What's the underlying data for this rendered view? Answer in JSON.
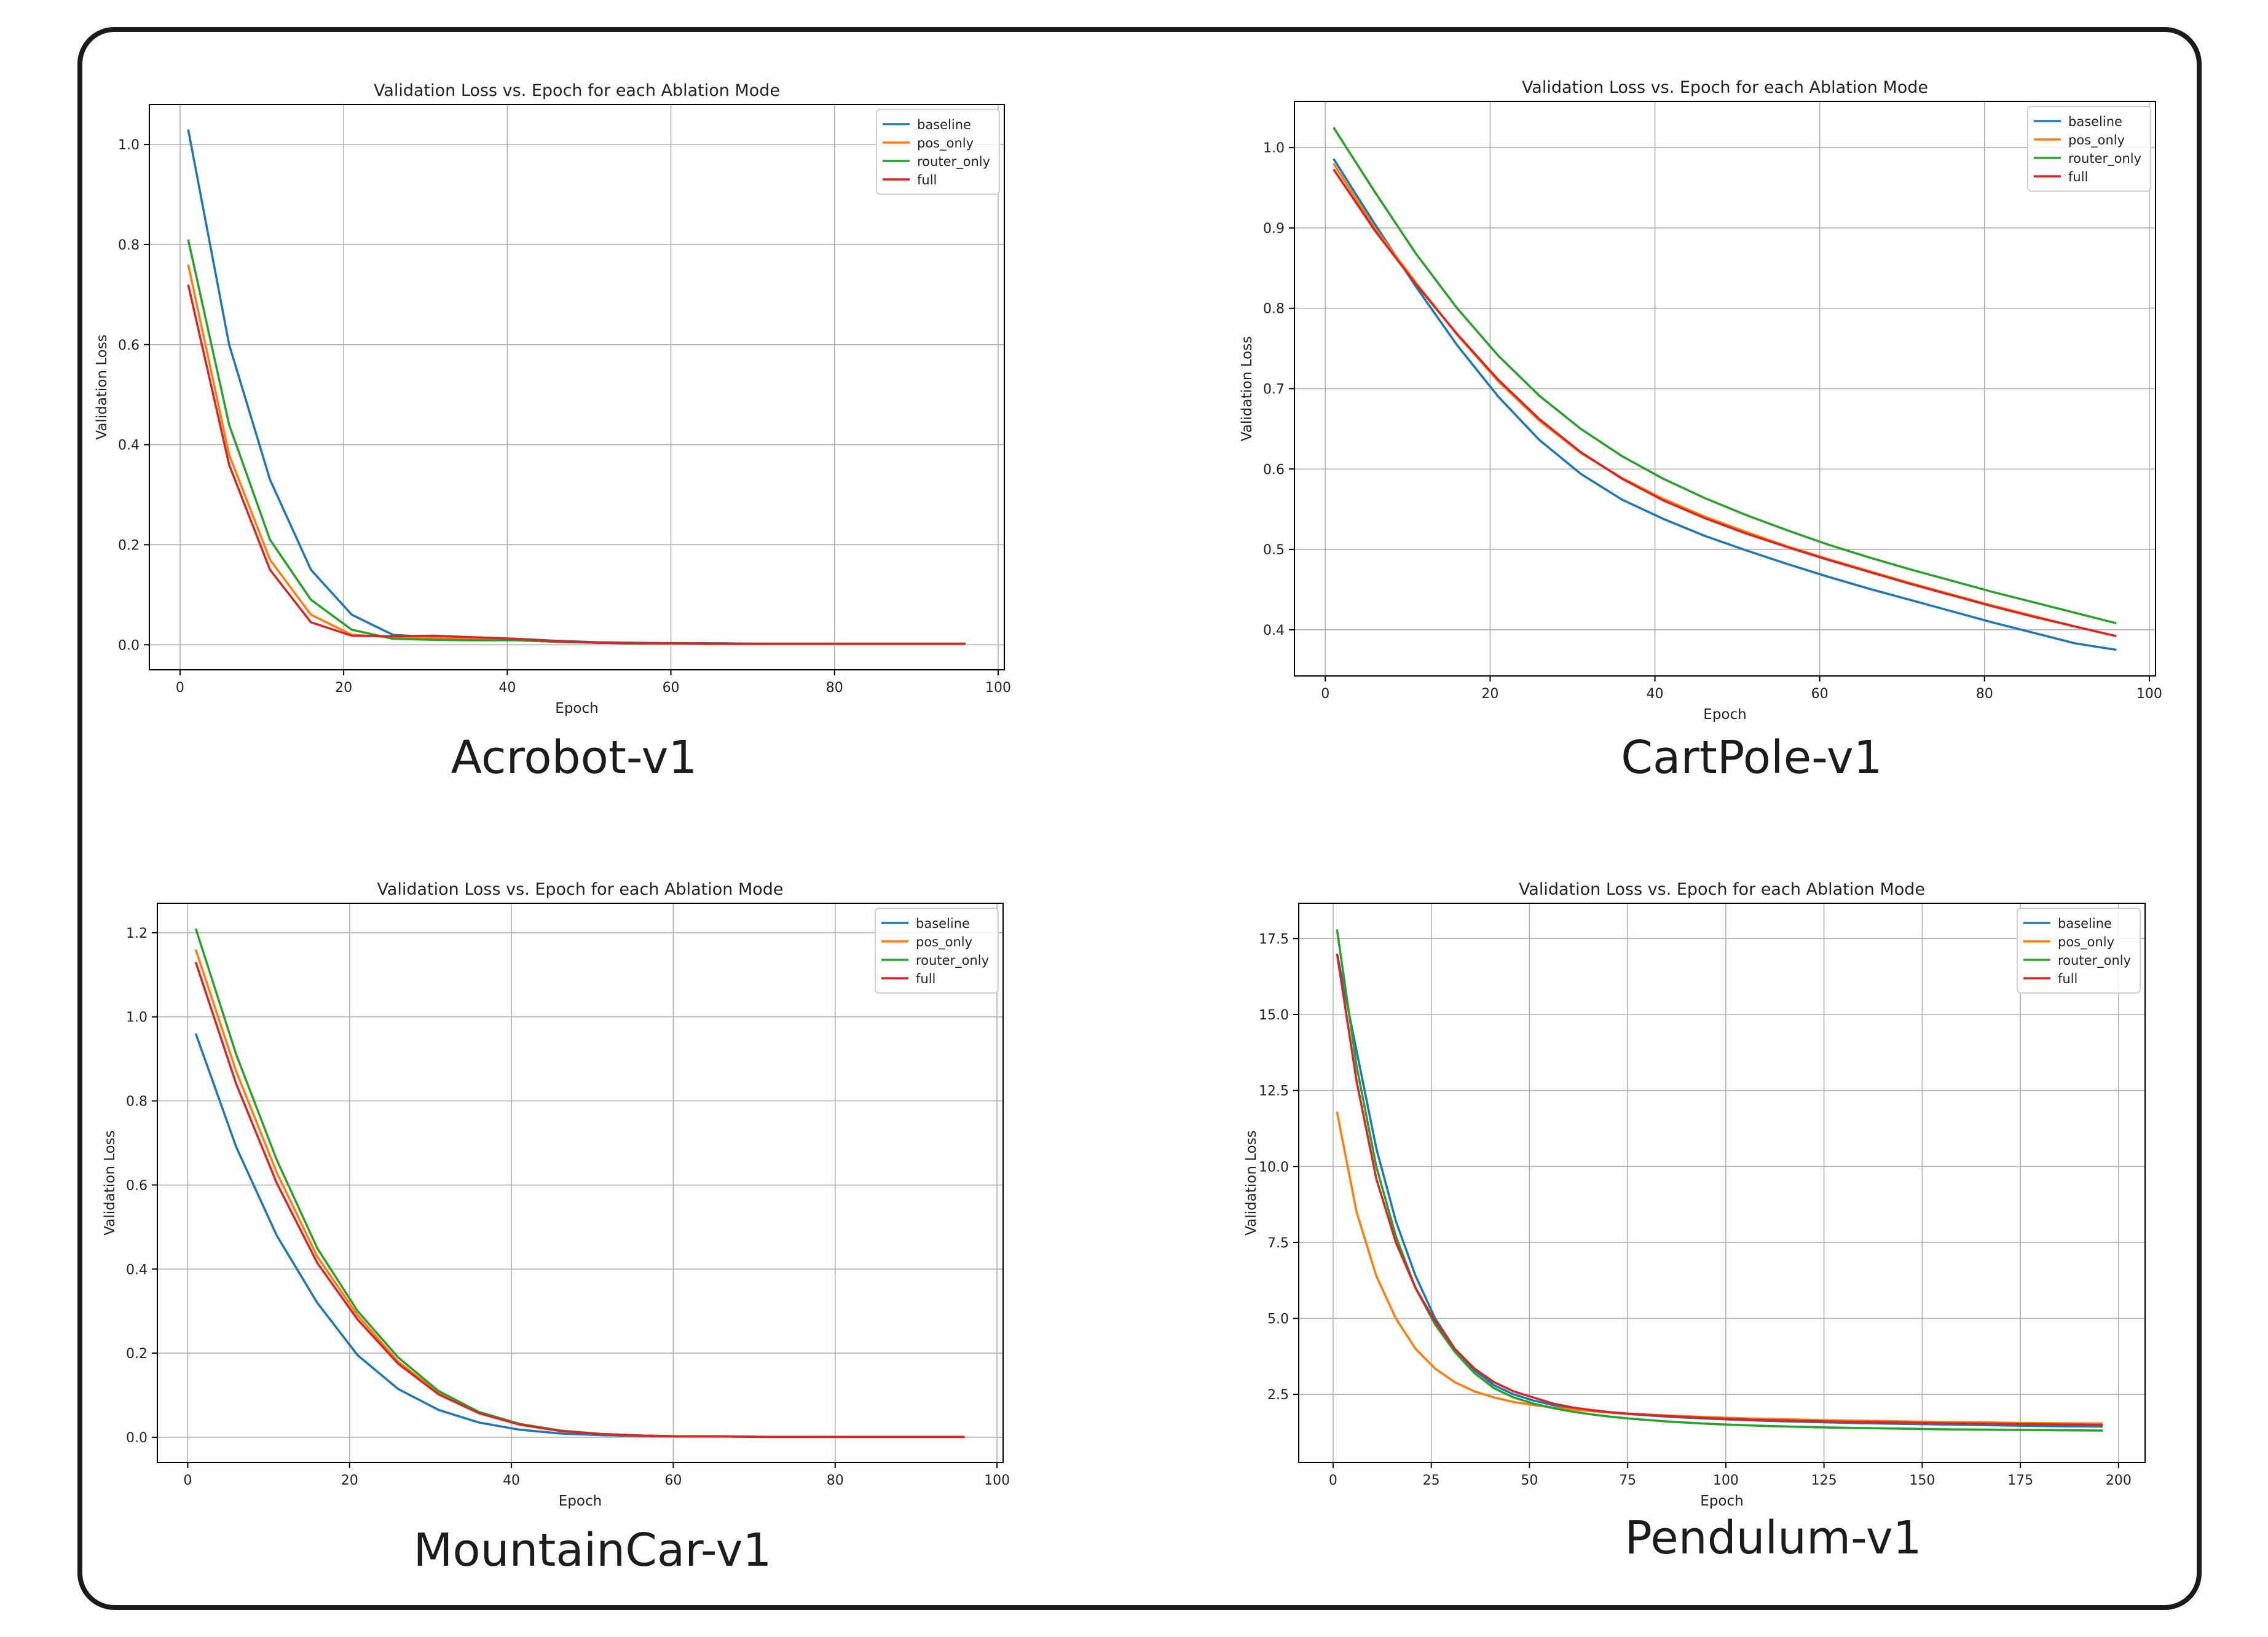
{
  "colors": {
    "baseline": "#1f77b4",
    "pos_only": "#ff7f0e",
    "router_only": "#2ca02c",
    "full": "#d62728"
  },
  "legend_placement": "upper right",
  "grid": true,
  "chart_data": [
    {
      "type": "line",
      "caption": "Acrobot-v1",
      "title": "Validation Loss vs. Epoch for each Ablation Mode",
      "xlabel": "Epoch",
      "ylabel": "Validation Loss",
      "xlim": [
        -3.75,
        100.75
      ],
      "ylim": [
        -0.05,
        1.08
      ],
      "xticks": [
        0,
        20,
        40,
        60,
        80,
        100
      ],
      "yticks": [
        0.0,
        0.2,
        0.4,
        0.6,
        0.8,
        1.0
      ],
      "ytick_decimals": 1,
      "x": [
        1,
        6,
        11,
        16,
        21,
        26,
        31,
        36,
        41,
        46,
        51,
        56,
        61,
        66,
        71,
        76,
        81,
        86,
        91,
        96
      ],
      "series": [
        {
          "name": "baseline",
          "color": "#1f77b4",
          "values": [
            1.03,
            0.6,
            0.33,
            0.15,
            0.06,
            0.02,
            0.015,
            0.014,
            0.012,
            0.008,
            0.005,
            0.004,
            0.003,
            0.003,
            0.002,
            0.002,
            0.002,
            0.002,
            0.002,
            0.002
          ]
        },
        {
          "name": "pos_only",
          "color": "#ff7f0e",
          "values": [
            0.76,
            0.38,
            0.17,
            0.06,
            0.02,
            0.015,
            0.013,
            0.012,
            0.01,
            0.006,
            0.004,
            0.003,
            0.003,
            0.002,
            0.002,
            0.002,
            0.002,
            0.002,
            0.002,
            0.002
          ]
        },
        {
          "name": "router_only",
          "color": "#2ca02c",
          "values": [
            0.81,
            0.44,
            0.21,
            0.09,
            0.03,
            0.012,
            0.01,
            0.009,
            0.009,
            0.006,
            0.004,
            0.003,
            0.003,
            0.002,
            0.002,
            0.002,
            0.002,
            0.002,
            0.002,
            0.002
          ]
        },
        {
          "name": "full",
          "color": "#d62728",
          "values": [
            0.72,
            0.36,
            0.15,
            0.045,
            0.018,
            0.017,
            0.018,
            0.015,
            0.012,
            0.007,
            0.004,
            0.003,
            0.003,
            0.002,
            0.002,
            0.002,
            0.002,
            0.002,
            0.002,
            0.002
          ]
        }
      ]
    },
    {
      "type": "line",
      "caption": "CartPole-v1",
      "title": "Validation Loss vs. Epoch for each Ablation Mode",
      "xlabel": "Epoch",
      "ylabel": "Validation Loss",
      "xlim": [
        -3.75,
        100.75
      ],
      "ylim": [
        0.3425,
        1.0575
      ],
      "xticks": [
        0,
        20,
        40,
        60,
        80,
        100
      ],
      "yticks": [
        0.4,
        0.5,
        0.6,
        0.7,
        0.8,
        0.9,
        1.0
      ],
      "ytick_decimals": 1,
      "x": [
        1,
        6,
        11,
        16,
        21,
        26,
        31,
        36,
        41,
        46,
        51,
        56,
        61,
        66,
        71,
        76,
        81,
        86,
        91,
        96
      ],
      "series": [
        {
          "name": "baseline",
          "color": "#1f77b4",
          "values": [
            0.986,
            0.905,
            0.827,
            0.754,
            0.69,
            0.636,
            0.594,
            0.562,
            0.538,
            0.517,
            0.499,
            0.482,
            0.466,
            0.451,
            0.437,
            0.423,
            0.409,
            0.396,
            0.383,
            0.375
          ]
        },
        {
          "name": "pos_only",
          "color": "#ff7f0e",
          "values": [
            0.98,
            0.9,
            0.832,
            0.767,
            0.709,
            0.66,
            0.62,
            0.589,
            0.563,
            0.541,
            0.522,
            0.504,
            0.488,
            0.473,
            0.458,
            0.444,
            0.43,
            0.417,
            0.404,
            0.392
          ]
        },
        {
          "name": "router_only",
          "color": "#2ca02c",
          "values": [
            1.025,
            0.945,
            0.868,
            0.8,
            0.741,
            0.691,
            0.65,
            0.616,
            0.588,
            0.564,
            0.543,
            0.524,
            0.506,
            0.49,
            0.475,
            0.461,
            0.447,
            0.434,
            0.421,
            0.408
          ]
        },
        {
          "name": "full",
          "color": "#d62728",
          "values": [
            0.973,
            0.897,
            0.83,
            0.768,
            0.711,
            0.662,
            0.621,
            0.588,
            0.561,
            0.539,
            0.52,
            0.503,
            0.487,
            0.472,
            0.457,
            0.443,
            0.429,
            0.416,
            0.404,
            0.392
          ]
        }
      ]
    },
    {
      "type": "line",
      "caption": "MountainCar-v1",
      "title": "Validation Loss vs. Epoch for each Ablation Mode",
      "xlabel": "Epoch",
      "ylabel": "Validation Loss",
      "xlim": [
        -3.75,
        100.75
      ],
      "ylim": [
        -0.06,
        1.27
      ],
      "xticks": [
        0,
        20,
        40,
        60,
        80,
        100
      ],
      "yticks": [
        0.0,
        0.2,
        0.4,
        0.6,
        0.8,
        1.0,
        1.2
      ],
      "ytick_decimals": 1,
      "x": [
        1,
        6,
        11,
        16,
        21,
        26,
        31,
        36,
        41,
        46,
        51,
        56,
        61,
        66,
        71,
        76,
        81,
        86,
        91,
        96
      ],
      "series": [
        {
          "name": "baseline",
          "color": "#1f77b4",
          "values": [
            0.96,
            0.69,
            0.48,
            0.32,
            0.195,
            0.115,
            0.065,
            0.035,
            0.018,
            0.009,
            0.005,
            0.003,
            0.002,
            0.002,
            0.001,
            0.001,
            0.001,
            0.001,
            0.001,
            0.001
          ]
        },
        {
          "name": "pos_only",
          "color": "#ff7f0e",
          "values": [
            1.16,
            0.87,
            0.63,
            0.43,
            0.29,
            0.18,
            0.105,
            0.058,
            0.031,
            0.016,
            0.008,
            0.004,
            0.002,
            0.002,
            0.001,
            0.001,
            0.001,
            0.001,
            0.001,
            0.001
          ]
        },
        {
          "name": "router_only",
          "color": "#2ca02c",
          "values": [
            1.21,
            0.91,
            0.66,
            0.45,
            0.3,
            0.19,
            0.11,
            0.06,
            0.032,
            0.016,
            0.008,
            0.004,
            0.002,
            0.002,
            0.001,
            0.001,
            0.001,
            0.001,
            0.001,
            0.001
          ]
        },
        {
          "name": "full",
          "color": "#d62728",
          "values": [
            1.13,
            0.84,
            0.605,
            0.415,
            0.28,
            0.175,
            0.102,
            0.057,
            0.03,
            0.015,
            0.008,
            0.004,
            0.002,
            0.002,
            0.001,
            0.001,
            0.001,
            0.001,
            0.001,
            0.001
          ]
        }
      ]
    },
    {
      "type": "line",
      "caption": "Pendulum-v1",
      "title": "Validation Loss vs. Epoch for each Ablation Mode",
      "xlabel": "Epoch",
      "ylabel": "Validation Loss",
      "xlim": [
        -8.75,
        206.75
      ],
      "ylim": [
        0.26,
        18.66
      ],
      "xticks": [
        0,
        25,
        50,
        75,
        100,
        125,
        150,
        175,
        200
      ],
      "yticks": [
        2.5,
        5.0,
        7.5,
        10.0,
        12.5,
        15.0,
        17.5
      ],
      "ytick_decimals": 1,
      "x": [
        1,
        6,
        11,
        16,
        21,
        26,
        31,
        36,
        41,
        46,
        51,
        56,
        61,
        66,
        71,
        76,
        86,
        96,
        106,
        116,
        126,
        136,
        146,
        156,
        166,
        176,
        186,
        196
      ],
      "series": [
        {
          "name": "baseline",
          "color": "#1f77b4",
          "values": [
            17.0,
            13.8,
            10.6,
            8.2,
            6.4,
            5.0,
            4.0,
            3.3,
            2.8,
            2.5,
            2.3,
            2.15,
            2.05,
            1.97,
            1.9,
            1.85,
            1.76,
            1.7,
            1.65,
            1.61,
            1.58,
            1.55,
            1.53,
            1.51,
            1.49,
            1.47,
            1.45,
            1.44
          ]
        },
        {
          "name": "pos_only",
          "color": "#ff7f0e",
          "values": [
            11.8,
            8.5,
            6.4,
            5.0,
            4.0,
            3.35,
            2.9,
            2.6,
            2.4,
            2.25,
            2.15,
            2.07,
            2.0,
            1.95,
            1.9,
            1.86,
            1.8,
            1.75,
            1.71,
            1.68,
            1.65,
            1.63,
            1.61,
            1.59,
            1.58,
            1.56,
            1.55,
            1.54
          ]
        },
        {
          "name": "router_only",
          "color": "#2ca02c",
          "values": [
            17.8,
            13.3,
            10.0,
            7.7,
            6.0,
            4.8,
            3.9,
            3.2,
            2.7,
            2.4,
            2.2,
            2.05,
            1.93,
            1.84,
            1.76,
            1.7,
            1.6,
            1.53,
            1.48,
            1.44,
            1.41,
            1.39,
            1.37,
            1.35,
            1.34,
            1.33,
            1.32,
            1.31
          ]
        },
        {
          "name": "full",
          "color": "#d62728",
          "values": [
            17.0,
            12.8,
            9.6,
            7.5,
            6.0,
            4.9,
            4.0,
            3.35,
            2.9,
            2.6,
            2.4,
            2.2,
            2.07,
            1.98,
            1.91,
            1.86,
            1.78,
            1.72,
            1.67,
            1.64,
            1.61,
            1.59,
            1.57,
            1.55,
            1.54,
            1.52,
            1.51,
            1.5
          ]
        }
      ]
    }
  ]
}
